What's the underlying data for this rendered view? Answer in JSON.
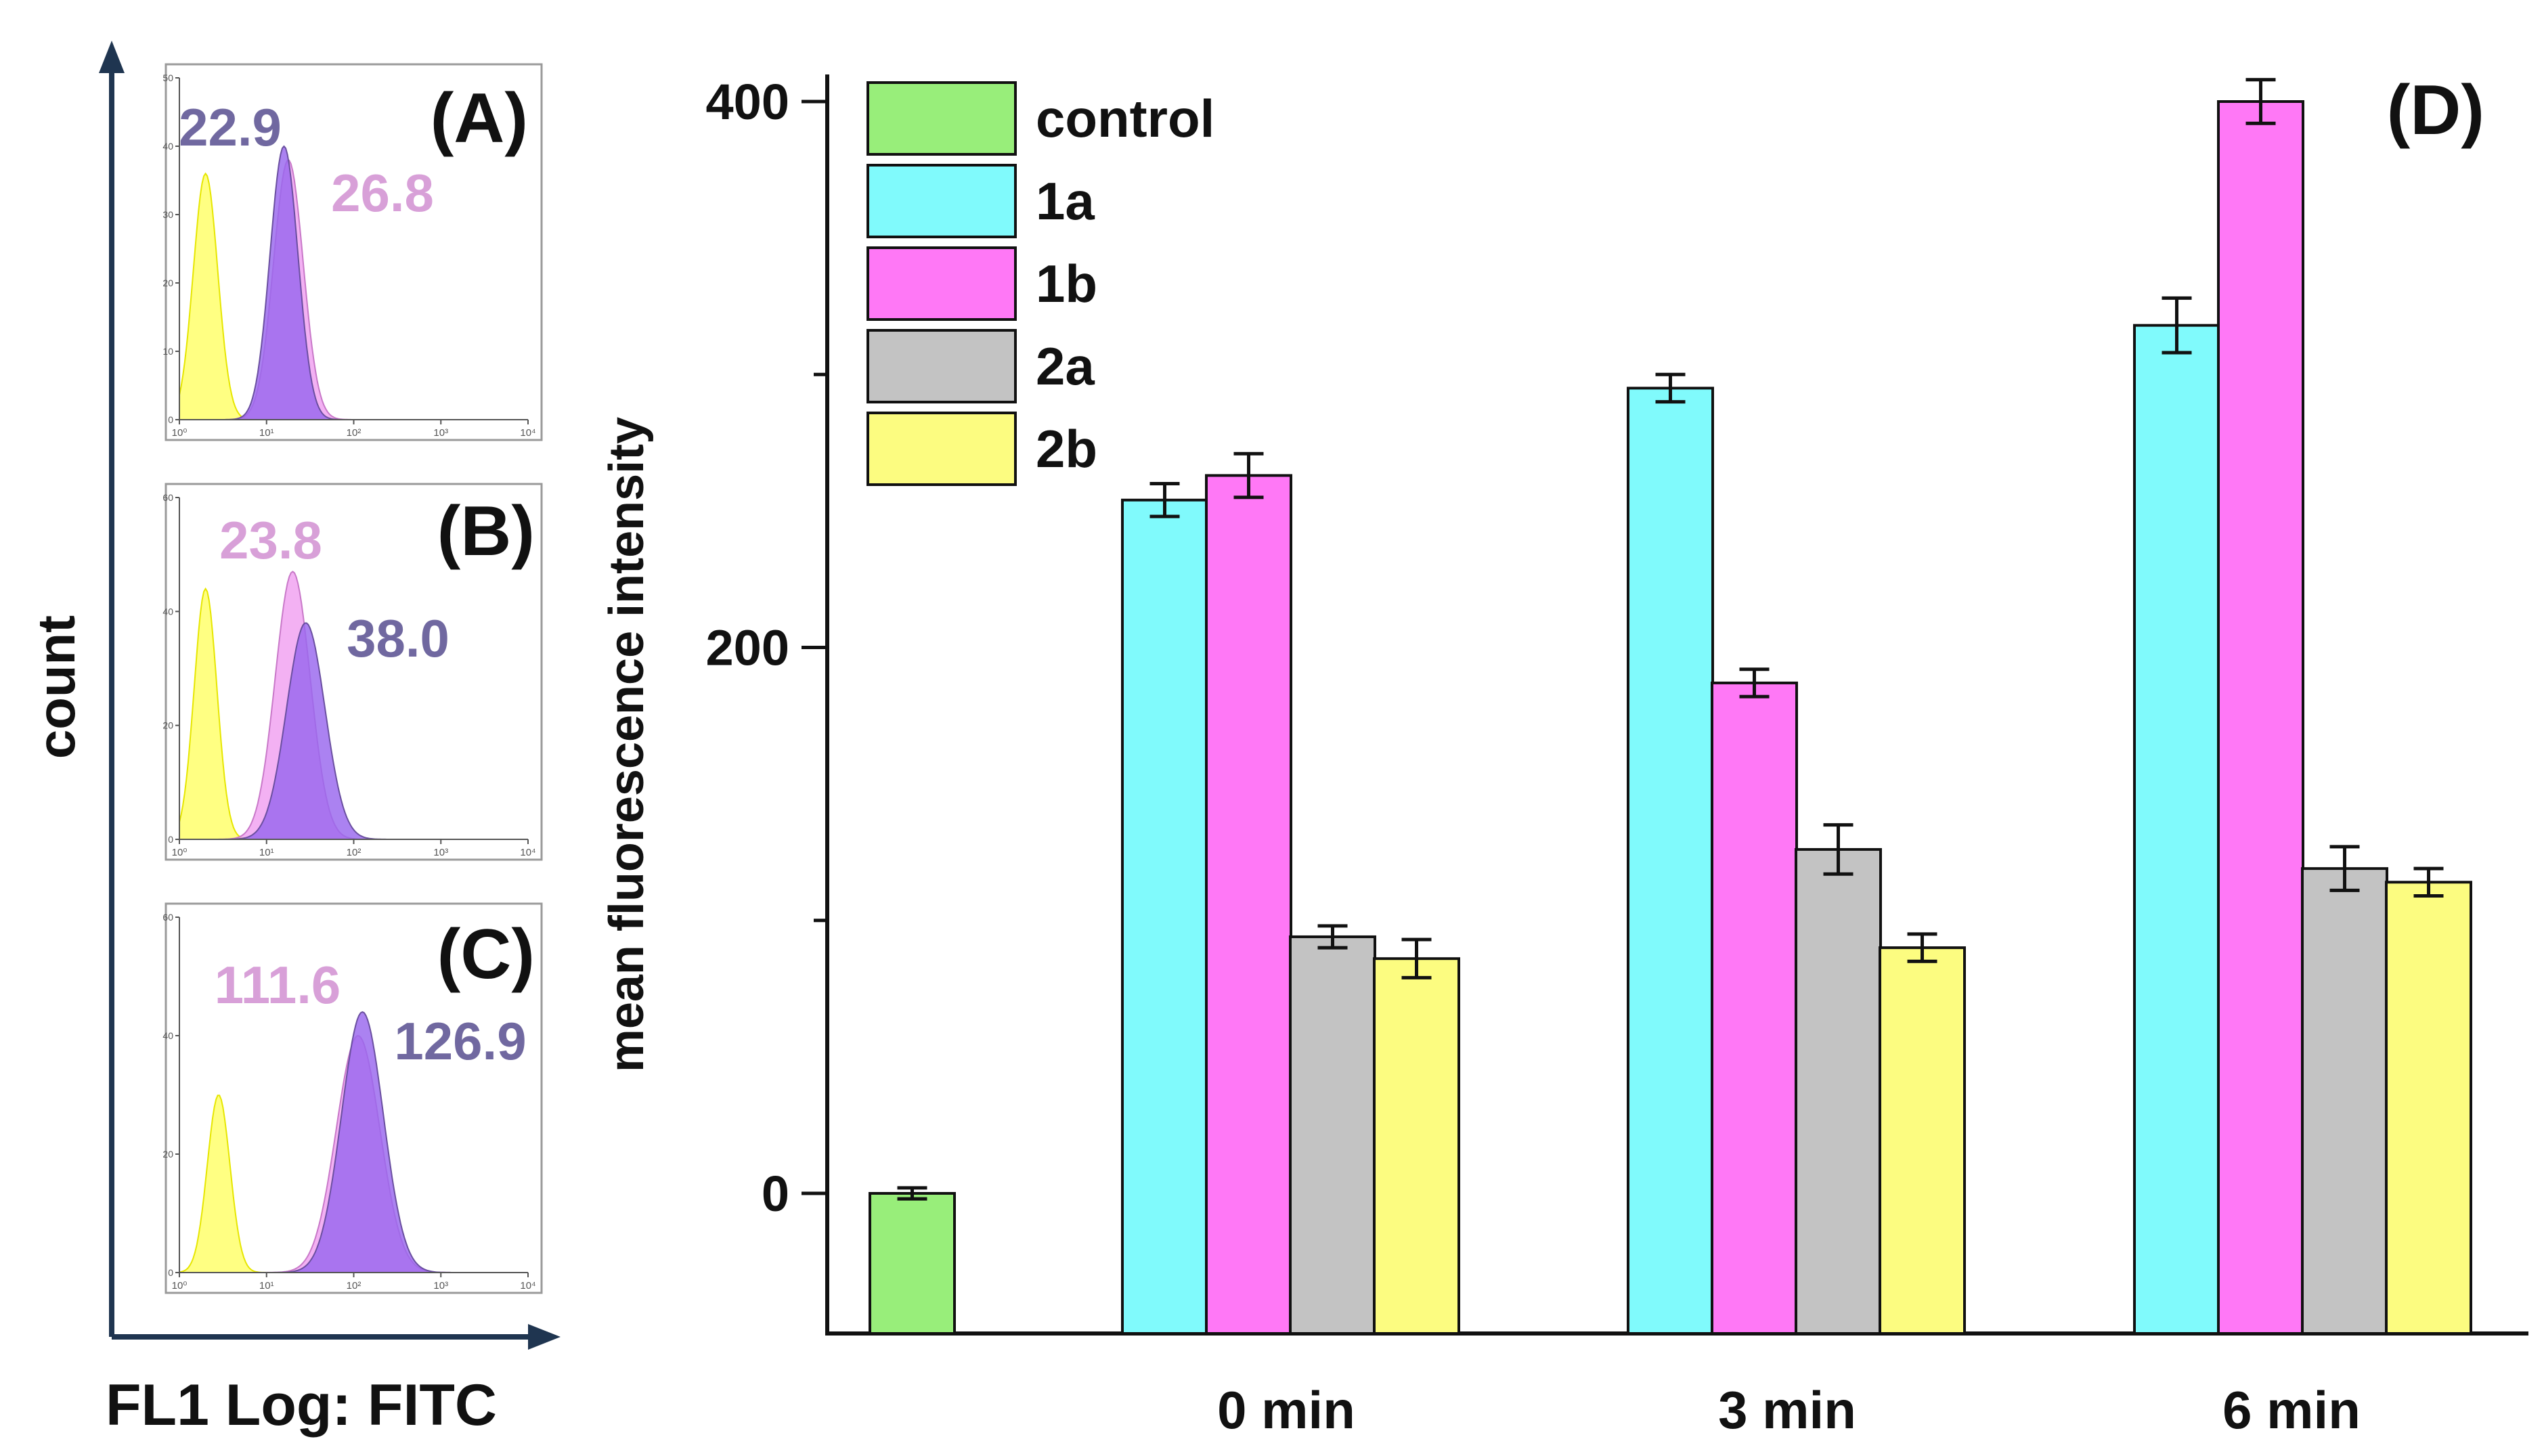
{
  "flow_panels": {
    "y_label": "count",
    "x_label": "FL1 Log: FITC",
    "x_tick_labels": [
      "10⁰",
      "10¹",
      "10²",
      "10³",
      "10⁴"
    ],
    "panels": [
      {
        "id": "A",
        "label": "(A)",
        "y_ticks": [
          "0",
          "10",
          "20",
          "30",
          "40",
          "50"
        ],
        "y_max": 50,
        "peaks": [
          {
            "name": "yellow",
            "color": "#ffff66",
            "stroke": "#e6e600",
            "center_log": 0.3,
            "width_log": 0.14,
            "height": 36
          },
          {
            "name": "pink",
            "color": "#f0a0f0",
            "stroke": "#c878c8",
            "center_log": 1.25,
            "width_log": 0.17,
            "height": 38
          },
          {
            "name": "purple",
            "color": "#9966ee",
            "stroke": "#6a4fa0",
            "center_log": 1.2,
            "width_log": 0.16,
            "height": 40
          }
        ],
        "values": [
          {
            "text": "22.9",
            "color": "#7068a0"
          },
          {
            "text": "26.8",
            "color": "#d8a0d8"
          }
        ]
      },
      {
        "id": "B",
        "label": "(B)",
        "y_ticks": [
          "0",
          "20",
          "40",
          "60"
        ],
        "y_max": 60,
        "peaks": [
          {
            "name": "yellow",
            "color": "#ffff66",
            "stroke": "#e6e600",
            "center_log": 0.3,
            "width_log": 0.13,
            "height": 44
          },
          {
            "name": "pink",
            "color": "#f0a0f0",
            "stroke": "#c878c8",
            "center_log": 1.3,
            "width_log": 0.2,
            "height": 47
          },
          {
            "name": "purple",
            "color": "#9966ee",
            "stroke": "#6a4fa0",
            "center_log": 1.45,
            "width_log": 0.22,
            "height": 38
          }
        ],
        "values": [
          {
            "text": "23.8",
            "color": "#d8a0d8"
          },
          {
            "text": "38.0",
            "color": "#7068a0"
          }
        ]
      },
      {
        "id": "C",
        "label": "(C)",
        "y_ticks": [
          "0",
          "20",
          "40",
          "60"
        ],
        "y_max": 60,
        "peaks": [
          {
            "name": "yellow",
            "color": "#ffff66",
            "stroke": "#e6e600",
            "center_log": 0.45,
            "width_log": 0.13,
            "height": 30
          },
          {
            "name": "pink",
            "color": "#f0a0f0",
            "stroke": "#c878c8",
            "center_log": 2.05,
            "width_log": 0.25,
            "height": 40
          },
          {
            "name": "purple",
            "color": "#9966ee",
            "stroke": "#6a4fa0",
            "center_log": 2.1,
            "width_log": 0.24,
            "height": 44
          }
        ],
        "values": [
          {
            "text": "111.6",
            "color": "#d8a0d8"
          },
          {
            "text": "126.9",
            "color": "#7068a0"
          }
        ]
      }
    ]
  },
  "chart_data": {
    "type": "bar",
    "panel_label": "(D)",
    "ylabel": "mean fluorescence intensity",
    "xlabel": "",
    "ylim": [
      -50,
      420
    ],
    "y_ticks": [
      0,
      200,
      400
    ],
    "minor_y_ticks": [
      100,
      300
    ],
    "categories": [
      "",
      "0 min",
      "3 min",
      "6 min"
    ],
    "legend_position": "top-left",
    "series": [
      {
        "name": "control",
        "color": "#98ee7a",
        "values": [
          0,
          null,
          null,
          null
        ],
        "errors": [
          2,
          null,
          null,
          null
        ]
      },
      {
        "name": "1a",
        "color": "#80fafc",
        "values": [
          null,
          254,
          295,
          318
        ],
        "errors": [
          null,
          6,
          5,
          10
        ]
      },
      {
        "name": "1b",
        "color": "#ff78f6",
        "values": [
          null,
          263,
          null,
          400
        ],
        "errors": [
          null,
          8,
          null,
          8
        ]
      },
      {
        "name": "1b",
        "color": "#ff78f6",
        "values": [
          null,
          null,
          187,
          null
        ],
        "errors": [
          null,
          null,
          5,
          null
        ]
      },
      {
        "name": "2a",
        "color": "#c3c3c3",
        "values": [
          null,
          94,
          126,
          119
        ],
        "errors": [
          null,
          4,
          9,
          8
        ]
      },
      {
        "name": "2b",
        "color": "#fcfc80",
        "values": [
          null,
          86,
          90,
          114
        ],
        "errors": [
          null,
          7,
          5,
          5
        ]
      }
    ],
    "legend": [
      {
        "name": "control",
        "color": "#98ee7a"
      },
      {
        "name": "1a",
        "color": "#80fafc"
      },
      {
        "name": "1b",
        "color": "#ff78f6"
      },
      {
        "name": "2a",
        "color": "#c3c3c3"
      },
      {
        "name": "2b",
        "color": "#fcfc80"
      }
    ]
  }
}
